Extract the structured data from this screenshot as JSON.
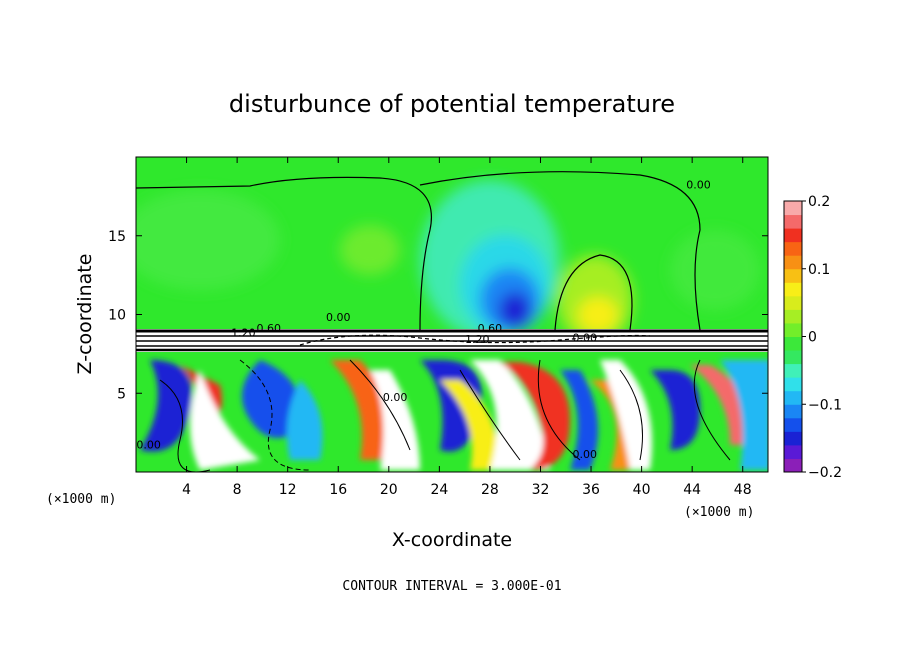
{
  "chart_data": {
    "type": "heatmap",
    "title": "disturbunce of potential temperature",
    "xlabel": "X-coordinate",
    "ylabel": "Z-coordinate",
    "x_unit_note": "(×1000 m)",
    "footnote": "CONTOUR INTERVAL = 3.000E-01",
    "xlim": [
      0,
      50
    ],
    "ylim": [
      0,
      20
    ],
    "x_ticks": [
      4,
      8,
      12,
      16,
      20,
      24,
      28,
      32,
      36,
      40,
      44,
      48
    ],
    "x_tick_labels": [
      "4",
      "8",
      "12",
      "16",
      "20",
      "24",
      "28",
      "32",
      "36",
      "40",
      "44",
      "48"
    ],
    "y_ticks": [
      5,
      10,
      15
    ],
    "y_tick_labels": [
      "5",
      "10",
      "15"
    ],
    "colorbar": {
      "min": -0.2,
      "max": 0.2,
      "ticks": [
        0.2,
        0.1,
        0,
        -0.1,
        -0.2
      ],
      "tick_labels": [
        "0.2",
        "0.1",
        "0",
        "−0.1",
        "−0.2"
      ],
      "colors": [
        "#8b1fb8",
        "#5a1ad6",
        "#1a22d4",
        "#1450ec",
        "#1a86f4",
        "#22b8f4",
        "#30e0ea",
        "#40f0b8",
        "#34e860",
        "#3ce83a",
        "#72ee2a",
        "#a6ee24",
        "#d8ec1c",
        "#f8ee18",
        "#f8c014",
        "#f89014",
        "#f86414",
        "#f03020",
        "#f46a6a",
        "#f8aaaa"
      ]
    },
    "contour_labels": [
      {
        "text": "0.00",
        "x": 44.5,
        "z": 18.0
      },
      {
        "text": "0.00",
        "x": 16.0,
        "z": 9.6
      },
      {
        "text": "1.20",
        "x": 8.5,
        "z": 8.6
      },
      {
        "text": "0.60",
        "x": 10.5,
        "z": 8.9
      },
      {
        "text": "0.60",
        "x": 28.0,
        "z": 8.9
      },
      {
        "text": "0.00",
        "x": 35.5,
        "z": 8.3
      },
      {
        "text": "1.20",
        "x": 27.0,
        "z": 8.2
      },
      {
        "text": "0.00",
        "x": 20.5,
        "z": 4.5
      },
      {
        "text": "0.00",
        "x": 1.0,
        "z": 1.5
      },
      {
        "text": "0.00",
        "x": 35.5,
        "z": 0.9
      }
    ],
    "regions": [
      {
        "desc": "upper layer",
        "z_range": [
          8.6,
          20
        ],
        "dominant_value": 0.0
      },
      {
        "desc": "negative core above x=30",
        "x": 30,
        "z": 10.5,
        "value": -0.15
      },
      {
        "desc": "positive core",
        "x": 36,
        "z": 9.5,
        "value": 0.08
      },
      {
        "desc": "stable band",
        "z_range": [
          7.6,
          8.6
        ],
        "value": "above 0.2"
      },
      {
        "desc": "turbulent lower layer",
        "z_range": [
          0,
          7.6
        ],
        "value_range": [
          -0.2,
          0.2
        ]
      }
    ]
  }
}
